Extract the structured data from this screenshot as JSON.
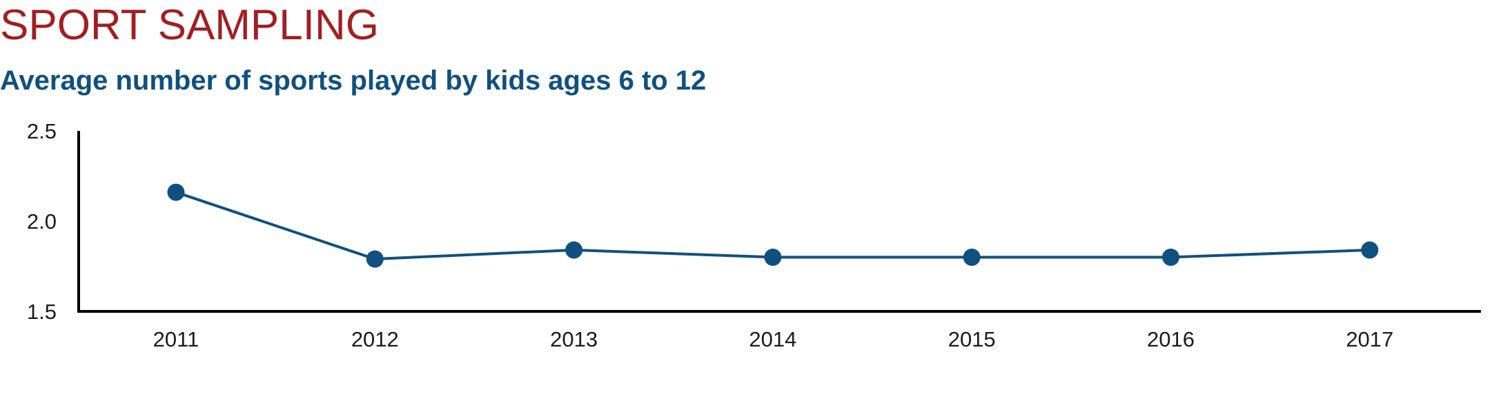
{
  "chart_data": {
    "type": "line",
    "title": "SPORT SAMPLING",
    "subtitle": "Average number of sports played by kids ages 6 to 12",
    "xlabel": "",
    "ylabel": "",
    "categories": [
      "2011",
      "2012",
      "2013",
      "2014",
      "2015",
      "2016",
      "2017"
    ],
    "series": [
      {
        "values": [
          2.16,
          1.79,
          1.84,
          1.8,
          1.8,
          1.8,
          1.84
        ]
      }
    ],
    "ylim": [
      1.5,
      2.5
    ],
    "yticks": [
      "1.5",
      "2.0",
      "2.5"
    ],
    "grid": false,
    "legend": "none",
    "colors": {
      "title": "#a11f22",
      "subtitle": "#10507e",
      "series": "#10507e",
      "axis": "#000000"
    }
  }
}
